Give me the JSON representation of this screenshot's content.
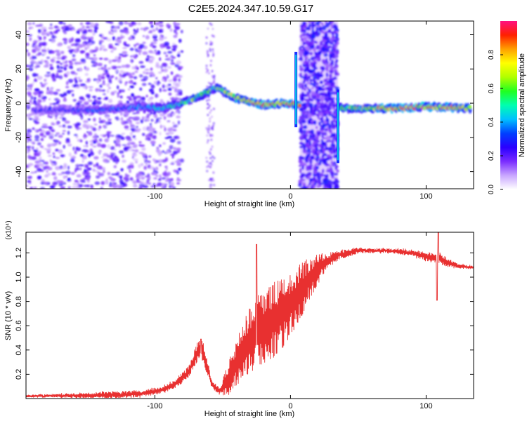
{
  "title": "C2E5.2024.347.10.59.G17",
  "chart_data": [
    {
      "type": "heatmap",
      "xlabel": "Height of straight line (km)",
      "ylabel": "Frequency (Hz)",
      "xlim": [
        -195,
        135
      ],
      "ylim": [
        -50,
        48
      ],
      "xticks": [
        "-100",
        "0",
        "100"
      ],
      "yticks": [
        "-40",
        "-20",
        "0",
        "20",
        "40"
      ],
      "colorbar": {
        "label": "Normalized spectral amplitude",
        "range": [
          0,
          1
        ],
        "ticks": [
          "0.0",
          "0.2",
          "0.4",
          "0.6",
          "0.8"
        ],
        "colors": [
          "#ffffff",
          "#c9a6ff",
          "#7a2cff",
          "#2a00ff",
          "#0040ff",
          "#00c0ff",
          "#00ffb0",
          "#20ff20",
          "#b0ff00",
          "#ffff00",
          "#ffa000",
          "#ff2000",
          "#ff1080"
        ]
      },
      "ridge": [
        {
          "x": -190,
          "f": -4,
          "a": 0.25
        },
        {
          "x": -140,
          "f": -4,
          "a": 0.35
        },
        {
          "x": -110,
          "f": -2,
          "a": 0.4
        },
        {
          "x": -95,
          "f": -3,
          "a": 0.5
        },
        {
          "x": -80,
          "f": 0,
          "a": 0.55
        },
        {
          "x": -65,
          "f": 5,
          "a": 0.7
        },
        {
          "x": -55,
          "f": 9,
          "a": 0.6
        },
        {
          "x": -40,
          "f": 3,
          "a": 0.75
        },
        {
          "x": -20,
          "f": -1,
          "a": 0.85
        },
        {
          "x": -5,
          "f": 0,
          "a": 0.9
        },
        {
          "x": 40,
          "f": -3,
          "a": 0.6
        },
        {
          "x": 85,
          "f": -3,
          "a": 0.95
        },
        {
          "x": 100,
          "f": -2,
          "a": 0.9
        },
        {
          "x": 133,
          "f": -3,
          "a": 0.75
        }
      ],
      "noise_band": [
        7,
        35
      ],
      "spikes": [
        {
          "x": 4,
          "f_min": -14,
          "f_max": 30
        },
        {
          "x": 35,
          "f_min": -35,
          "f_max": 8
        }
      ]
    },
    {
      "type": "line",
      "xlabel": "Height of straight line (km)",
      "ylabel": "SNR (10 * v/v)",
      "scale_label": "(x10⁴)",
      "xlim": [
        -195,
        135
      ],
      "ylim": [
        0,
        1.37
      ],
      "xticks": [
        "-100",
        "0",
        "100"
      ],
      "yticks": [
        "0.2",
        "0.4",
        "0.6",
        "0.8",
        "1.0",
        "1.2"
      ],
      "color": "#e83030",
      "envelope": {
        "x": [
          -195,
          -160,
          -130,
          -110,
          -95,
          -85,
          -75,
          -70,
          -66,
          -63,
          -58,
          -52,
          -45,
          -35,
          -25,
          -15,
          -5,
          5,
          15,
          25,
          35,
          50,
          70,
          90,
          100,
          110,
          115,
          125,
          135
        ],
        "base": [
          0.02,
          0.025,
          0.03,
          0.04,
          0.07,
          0.12,
          0.22,
          0.35,
          0.42,
          0.33,
          0.12,
          0.06,
          0.18,
          0.4,
          0.55,
          0.62,
          0.72,
          0.85,
          1.0,
          1.12,
          1.18,
          1.22,
          1.22,
          1.2,
          1.17,
          1.15,
          1.12,
          1.09,
          1.08
        ],
        "amp": [
          0.01,
          0.02,
          0.03,
          0.03,
          0.03,
          0.04,
          0.05,
          0.09,
          0.1,
          0.08,
          0.04,
          0.03,
          0.15,
          0.26,
          0.3,
          0.32,
          0.3,
          0.25,
          0.17,
          0.08,
          0.04,
          0.025,
          0.02,
          0.03,
          0.04,
          0.05,
          0.04,
          0.02,
          0.015
        ]
      },
      "features": [
        {
          "x": -66,
          "y": 0.49
        },
        {
          "x": -25,
          "y": 1.27
        },
        {
          "x": 108,
          "y": 0.81
        },
        {
          "x": 109,
          "y": 1.37
        }
      ]
    }
  ]
}
